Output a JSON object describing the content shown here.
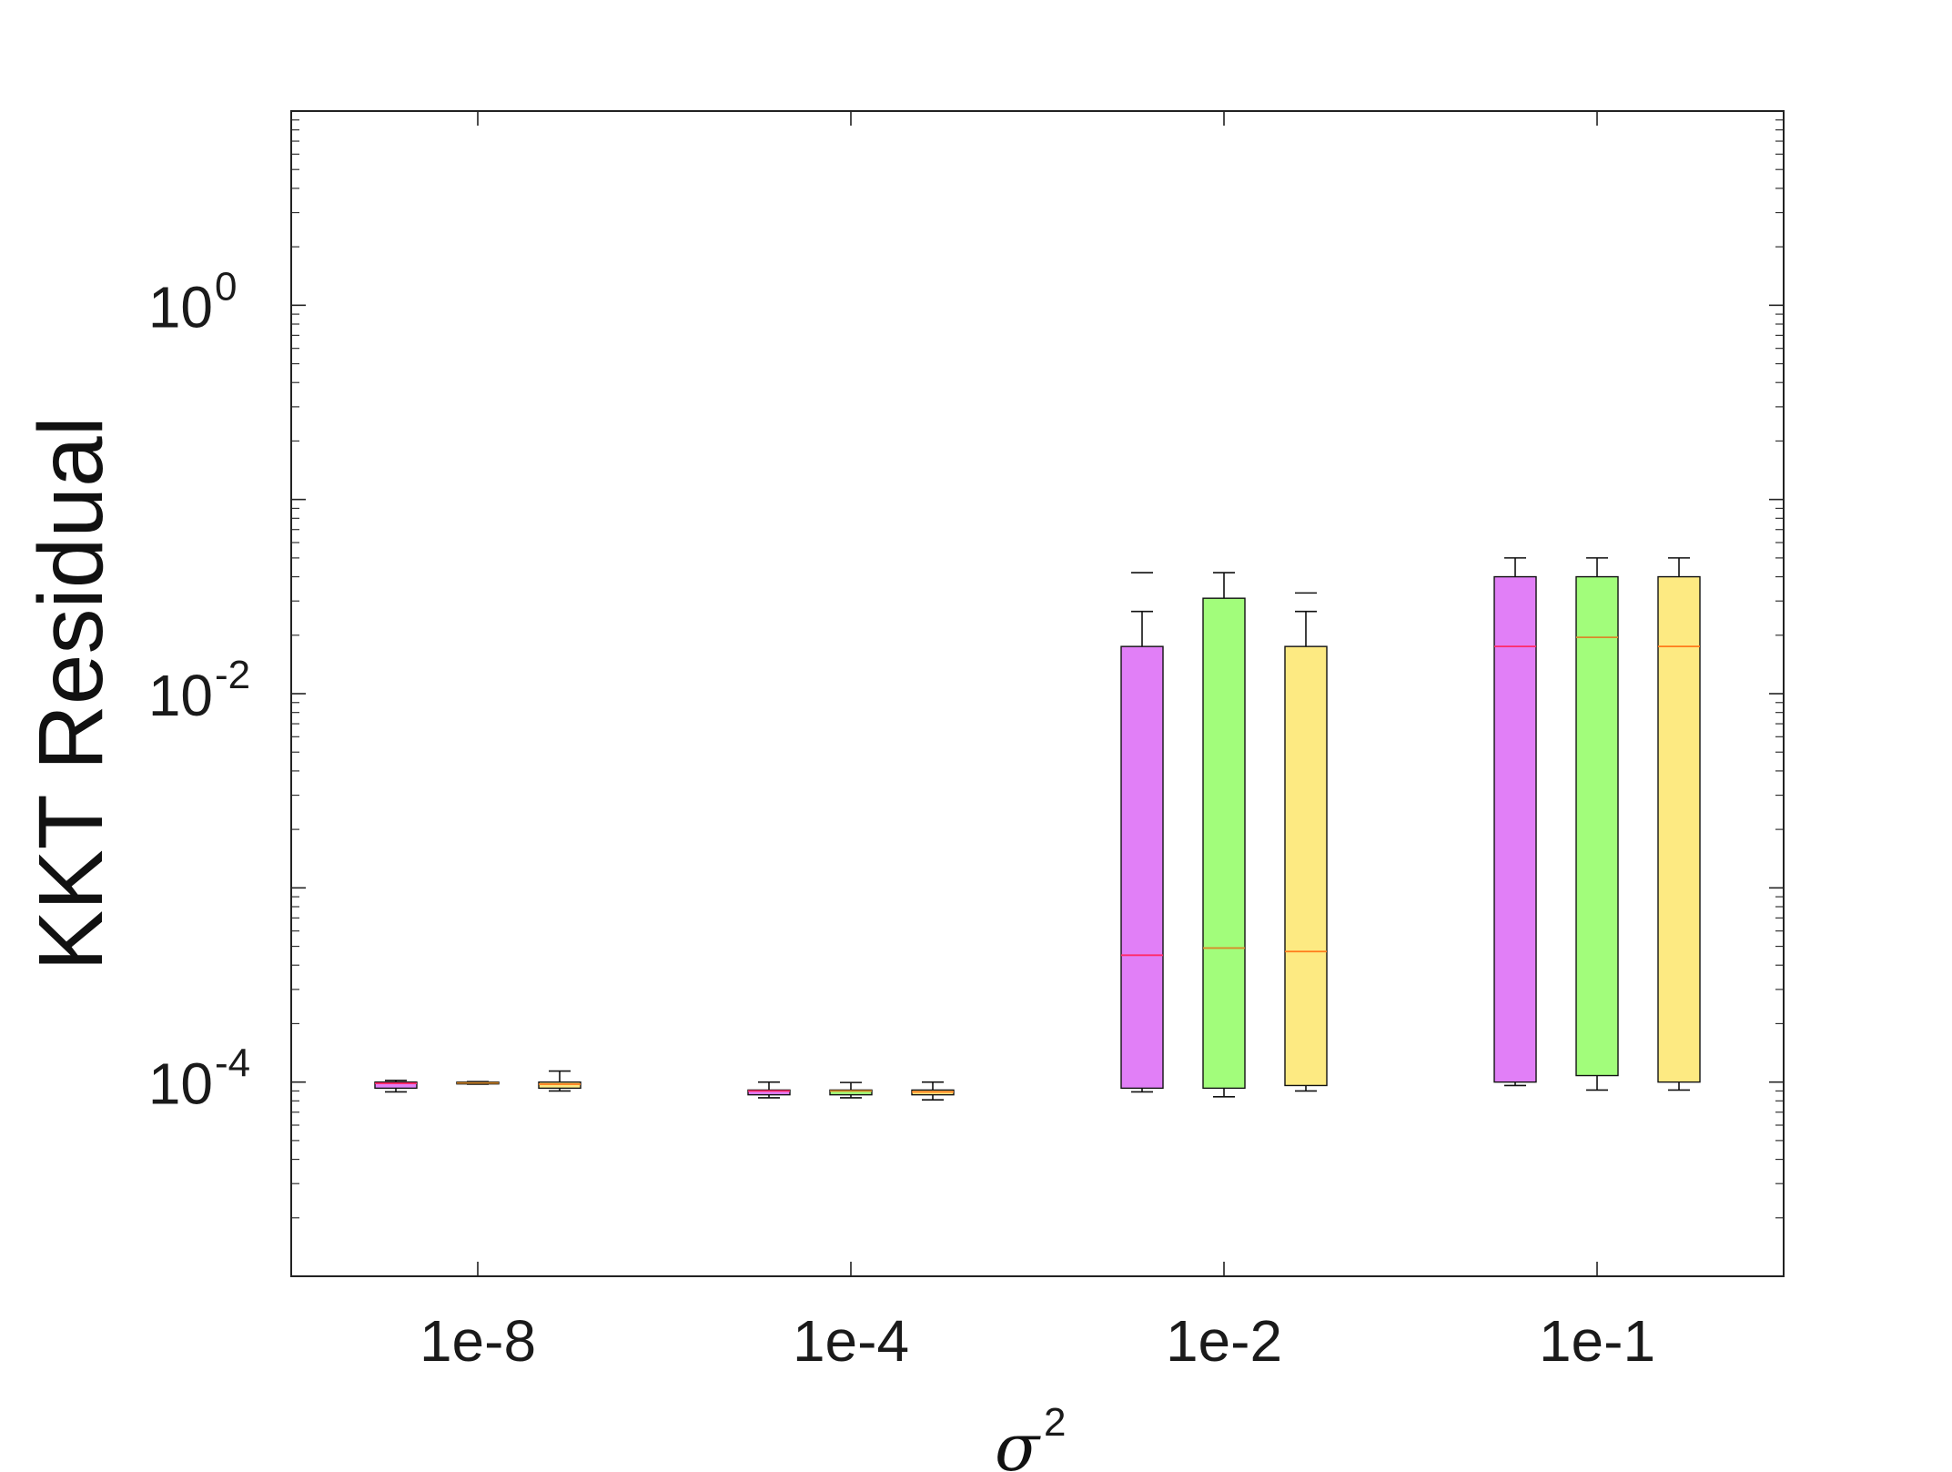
{
  "chart_data": {
    "type": "boxplot",
    "xlabel": "σ",
    "xlabel_sup": "2",
    "ylabel": "KKT Residual",
    "yscale": "log",
    "ylim": [
      1e-05,
      10
    ],
    "ytick_labels": [
      {
        "base": "10",
        "exp": "0",
        "value": 1
      },
      {
        "base": "10",
        "exp": "-2",
        "value": 0.01
      },
      {
        "base": "10",
        "exp": "-4",
        "value": 0.0001
      }
    ],
    "categories": [
      "1e-8",
      "1e-4",
      "1e-2",
      "1e-1"
    ],
    "series_colors": [
      "#e17ff7",
      "#a2fd7b",
      "#fdea82"
    ],
    "median_colors": [
      "#ff2a6a",
      "#d88a2a",
      "#ff7a1a"
    ],
    "groups": [
      {
        "category": "1e-8",
        "boxes": [
          {
            "whisker_low": 8.9e-05,
            "q1": 9.3e-05,
            "median": 9.85e-05,
            "q3": 0.0001,
            "whisker_high": 0.000102,
            "outliers": []
          },
          {
            "whisker_low": 9.75e-05,
            "q1": 9.85e-05,
            "median": 9.9e-05,
            "q3": 0.0001,
            "whisker_high": 0.0001005,
            "outliers": []
          },
          {
            "whisker_low": 9e-05,
            "q1": 9.3e-05,
            "median": 9.75e-05,
            "q3": 0.0001,
            "whisker_high": 0.000114,
            "outliers": []
          }
        ]
      },
      {
        "category": "1e-4",
        "boxes": [
          {
            "whisker_low": 8.3e-05,
            "q1": 8.6e-05,
            "median": 9e-05,
            "q3": 9.1e-05,
            "whisker_high": 0.0001,
            "outliers": []
          },
          {
            "whisker_low": 8.3e-05,
            "q1": 8.6e-05,
            "median": 9e-05,
            "q3": 9.1e-05,
            "whisker_high": 9.95e-05,
            "outliers": []
          },
          {
            "whisker_low": 8.1e-05,
            "q1": 8.6e-05,
            "median": 8.9e-05,
            "q3": 9.1e-05,
            "whisker_high": 0.0001,
            "outliers": []
          }
        ]
      },
      {
        "category": "1e-2",
        "boxes": [
          {
            "whisker_low": 8.9e-05,
            "q1": 9.3e-05,
            "median": 0.00045,
            "q3": 0.0175,
            "whisker_high": 0.0265,
            "outliers": [
              0.042
            ]
          },
          {
            "whisker_low": 8.4e-05,
            "q1": 9.3e-05,
            "median": 0.00049,
            "q3": 0.031,
            "whisker_high": 0.042,
            "outliers": []
          },
          {
            "whisker_low": 9e-05,
            "q1": 9.6e-05,
            "median": 0.00047,
            "q3": 0.0175,
            "whisker_high": 0.0265,
            "outliers": [
              0.033
            ]
          }
        ]
      },
      {
        "category": "1e-1",
        "boxes": [
          {
            "whisker_low": 9.6e-05,
            "q1": 0.0001,
            "median": 0.0175,
            "q3": 0.04,
            "whisker_high": 0.05,
            "outliers": []
          },
          {
            "whisker_low": 9.1e-05,
            "q1": 0.000108,
            "median": 0.0195,
            "q3": 0.04,
            "whisker_high": 0.05,
            "outliers": []
          },
          {
            "whisker_low": 9.1e-05,
            "q1": 0.0001,
            "median": 0.0175,
            "q3": 0.04,
            "whisker_high": 0.05,
            "outliers": []
          }
        ]
      }
    ]
  }
}
